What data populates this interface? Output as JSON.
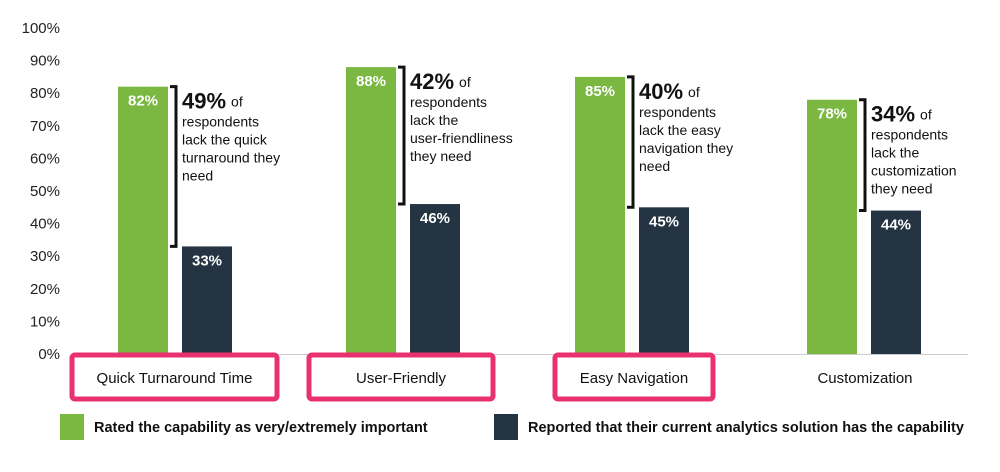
{
  "chart_data": {
    "type": "bar",
    "categories": [
      "Quick Turnaround Time",
      "User-Friendly",
      "Easy Navigation",
      "Customization"
    ],
    "series": [
      {
        "name": "Rated the capability as very/extremely important",
        "values": [
          82,
          88,
          85,
          78
        ],
        "labels": [
          "82%",
          "88%",
          "85%",
          "78%"
        ]
      },
      {
        "name": "Reported that their current analytics solution has the capability",
        "values": [
          33,
          46,
          45,
          44
        ],
        "labels": [
          "33%",
          "46%",
          "45%",
          "44%"
        ]
      }
    ],
    "ylim": [
      0,
      100
    ],
    "yticks": [
      "0%",
      "10%",
      "20%",
      "30%",
      "40%",
      "50%",
      "60%",
      "70%",
      "80%",
      "90%",
      "100%"
    ],
    "grid": false,
    "legend_position": "bottom",
    "highlighted_categories": [
      "Quick Turnaround Time",
      "User-Friendly",
      "Easy Navigation"
    ],
    "annotations": [
      {
        "big": "49%",
        "rest": [
          "of",
          "respondents",
          "lack the quick",
          "turnaround they",
          "need"
        ]
      },
      {
        "big": "42%",
        "rest": [
          "of",
          "respondents",
          "lack the",
          "user-friendliness",
          "they need"
        ]
      },
      {
        "big": "40%",
        "rest": [
          "of",
          "respondents",
          "lack the easy",
          "navigation they",
          "need"
        ]
      },
      {
        "big": "34%",
        "rest": [
          "of",
          "respondents",
          "lack the",
          "customization",
          "they need"
        ]
      }
    ]
  },
  "colors": {
    "important": "#7ab842",
    "has_capability": "#243443",
    "highlight_border": "#e8316e",
    "axis": "#cccccc"
  }
}
